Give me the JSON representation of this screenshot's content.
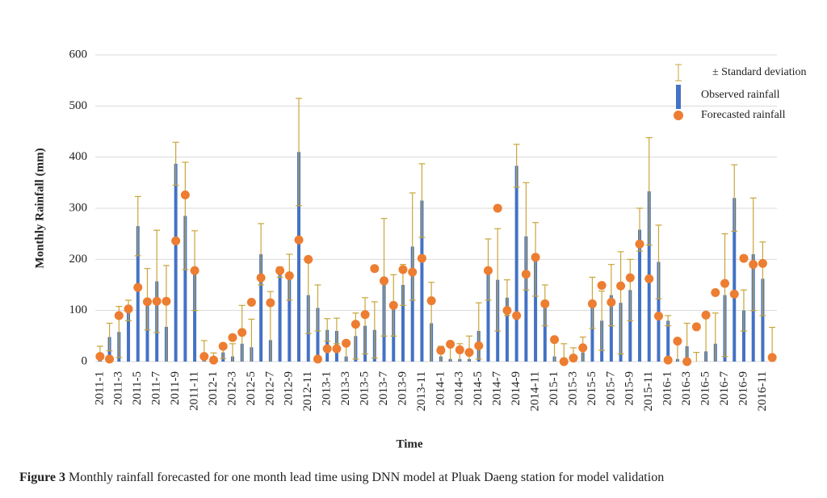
{
  "chart_data": {
    "type": "bar_line_points",
    "figure_label": "Figure 3",
    "caption": "Monthly rainfall forecasted for one month lead time using DNN model at Pluak Daeng station for model validation",
    "x_label": "Time",
    "y_label": "Monthly Rainfall (mm)",
    "categories": [
      "2011-1",
      null,
      "2011-3",
      null,
      "2011-5",
      null,
      "2011-7",
      null,
      "2011-9",
      null,
      "2011-11",
      null,
      "2012-1",
      null,
      "2012-3",
      null,
      "2012-5",
      null,
      "2012-7",
      null,
      "2012-9",
      null,
      "2012-11",
      null,
      "2013-1",
      null,
      "2013-3",
      null,
      "2013-5",
      null,
      "2013-7",
      null,
      "2013-9",
      null,
      "2013-11",
      null,
      "2014-1",
      null,
      "2014-3",
      null,
      "2014-5",
      null,
      "2014-7",
      null,
      "2014-9",
      null,
      "2014-11",
      null,
      "2015-1",
      null,
      "2015-3",
      null,
      "2015-5",
      null,
      "2015-7",
      null,
      "2015-9",
      null,
      "2015-11",
      null,
      "2016-1",
      null,
      "2016-3",
      null,
      "2016-5",
      null,
      "2016-7",
      null,
      "2016-9",
      null,
      "2016-11",
      null
    ],
    "series": [
      {
        "name": "Observed rainfall",
        "color": "#4472c4",
        "error_name": "± Standard deviation",
        "error_color": "#c9a53a",
        "values": [
          5,
          48,
          58,
          100,
          265,
          122,
          157,
          68,
          387,
          285,
          178,
          3,
          2,
          18,
          10,
          35,
          28,
          210,
          42,
          175,
          165,
          410,
          130,
          105,
          62,
          60,
          10,
          50,
          70,
          62,
          165,
          110,
          150,
          225,
          315,
          75,
          10,
          5,
          5,
          5,
          60,
          180,
          160,
          125,
          383,
          245,
          200,
          110,
          10,
          0,
          5,
          18,
          115,
          80,
          130,
          115,
          140,
          258,
          333,
          195,
          80,
          5,
          30,
          0,
          20,
          35,
          130,
          320,
          100,
          210,
          162,
          5
        ],
        "errors": [
          25,
          27,
          50,
          20,
          58,
          60,
          100,
          120,
          42,
          105,
          78,
          38,
          15,
          12,
          25,
          75,
          55,
          60,
          95,
          10,
          45,
          105,
          75,
          45,
          22,
          25,
          25,
          45,
          55,
          55,
          115,
          60,
          40,
          105,
          72,
          80,
          20,
          25,
          30,
          45,
          55,
          60,
          100,
          35,
          42,
          105,
          72,
          40,
          30,
          35,
          22,
          30,
          50,
          58,
          60,
          100,
          60,
          42,
          105,
          72,
          10,
          40,
          45,
          18,
          75,
          60,
          120,
          65,
          40,
          110,
          72,
          62
        ]
      },
      {
        "name": "Forecasted rainfall",
        "color": "#ed7d31",
        "values": [
          10,
          5,
          90,
          103,
          145,
          117,
          118,
          118,
          236,
          326,
          178,
          10,
          3,
          30,
          47,
          57,
          116,
          164,
          115,
          178,
          168,
          238,
          200,
          5,
          25,
          25,
          36,
          73,
          92,
          182,
          158,
          110,
          180,
          175,
          202,
          119,
          22,
          34,
          23,
          18,
          31,
          178,
          300,
          100,
          90,
          171,
          204,
          113,
          43,
          0,
          7,
          27,
          113,
          149,
          116,
          148,
          164,
          230,
          162,
          89,
          3,
          40,
          0,
          68,
          91,
          135,
          153,
          132,
          202,
          190,
          192,
          8
        ]
      }
    ],
    "ylim": [
      0,
      600
    ],
    "yticks": [
      0,
      100,
      200,
      300,
      400,
      500,
      600
    ],
    "grid": true,
    "legend": "top-right"
  }
}
